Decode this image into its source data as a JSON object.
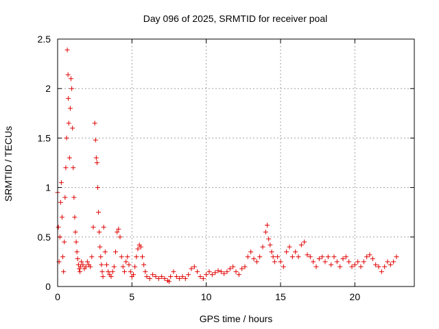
{
  "chart_data": {
    "type": "scatter",
    "title": "Day 096 of 2025, SRMTID for receiver poal",
    "xlabel": "GPS time / hours",
    "ylabel": "SRMTID / TECUs",
    "xlim": [
      0,
      24
    ],
    "ylim": [
      0,
      2.5
    ],
    "xticks": [
      0,
      5,
      10,
      15,
      20
    ],
    "yticks": [
      0,
      0.5,
      1,
      1.5,
      2,
      2.5
    ],
    "xtick_labels": [
      "0",
      "5",
      "10",
      "15",
      "20"
    ],
    "ytick_labels": [
      "0",
      "0.5",
      "1",
      "1.5",
      "2",
      "2.5"
    ],
    "grid": true,
    "marker": "+",
    "series": [
      {
        "name": "SRMTID",
        "color": "#e00000",
        "x": [
          0.0,
          0.05,
          0.1,
          0.15,
          0.2,
          0.25,
          0.3,
          0.35,
          0.4,
          0.45,
          0.5,
          0.55,
          0.6,
          0.65,
          0.7,
          0.72,
          0.75,
          0.8,
          0.85,
          0.9,
          0.95,
          1.0,
          1.05,
          1.1,
          1.15,
          1.2,
          1.25,
          1.3,
          1.35,
          1.4,
          1.45,
          1.5,
          1.55,
          1.6,
          1.7,
          1.8,
          1.9,
          2.0,
          2.1,
          2.2,
          2.3,
          2.4,
          2.5,
          2.55,
          2.6,
          2.65,
          2.7,
          2.75,
          2.8,
          2.85,
          2.9,
          2.95,
          3.0,
          3.05,
          3.1,
          3.2,
          3.3,
          3.4,
          3.5,
          3.6,
          3.7,
          3.8,
          3.9,
          4.0,
          4.1,
          4.2,
          4.3,
          4.4,
          4.5,
          4.6,
          4.7,
          4.8,
          4.9,
          5.0,
          5.1,
          5.2,
          5.3,
          5.4,
          5.5,
          5.6,
          5.7,
          5.8,
          5.9,
          6.0,
          6.2,
          6.4,
          6.6,
          6.8,
          7.0,
          7.2,
          7.4,
          7.5,
          7.6,
          7.8,
          8.0,
          8.2,
          8.4,
          8.6,
          8.8,
          9.0,
          9.2,
          9.4,
          9.6,
          9.8,
          10.0,
          10.2,
          10.4,
          10.6,
          10.8,
          11.0,
          11.2,
          11.4,
          11.6,
          11.8,
          12.0,
          12.2,
          12.4,
          12.6,
          12.8,
          13.0,
          13.2,
          13.4,
          13.6,
          13.8,
          14.0,
          14.1,
          14.2,
          14.3,
          14.4,
          14.5,
          14.6,
          14.8,
          15.0,
          15.2,
          15.4,
          15.6,
          15.8,
          16.0,
          16.2,
          16.4,
          16.6,
          16.8,
          17.0,
          17.2,
          17.4,
          17.6,
          17.8,
          18.0,
          18.2,
          18.4,
          18.6,
          18.8,
          19.0,
          19.2,
          19.4,
          19.6,
          19.8,
          20.0,
          20.2,
          20.4,
          20.6,
          20.8,
          21.0,
          21.2,
          21.4,
          21.6,
          21.8,
          22.0,
          22.2,
          22.4,
          22.6,
          22.8
        ],
        "y": [
          0.95,
          0.6,
          0.25,
          0.5,
          0.85,
          1.05,
          0.7,
          0.3,
          0.15,
          0.45,
          0.9,
          1.2,
          1.5,
          2.39,
          2.14,
          1.9,
          1.65,
          1.3,
          1.8,
          2.1,
          2.0,
          1.6,
          1.2,
          0.9,
          0.7,
          0.55,
          0.45,
          0.35,
          0.28,
          0.22,
          0.18,
          0.15,
          0.2,
          0.25,
          0.22,
          0.18,
          0.2,
          0.25,
          0.22,
          0.2,
          0.3,
          0.6,
          1.65,
          1.48,
          1.3,
          1.25,
          1.0,
          0.75,
          0.55,
          0.4,
          0.3,
          0.22,
          0.15,
          0.1,
          0.6,
          0.35,
          0.22,
          0.15,
          0.12,
          0.1,
          0.15,
          0.2,
          0.35,
          0.55,
          0.58,
          0.5,
          0.3,
          0.2,
          0.15,
          0.25,
          0.3,
          0.22,
          0.15,
          0.1,
          0.12,
          0.2,
          0.3,
          0.38,
          0.42,
          0.4,
          0.3,
          0.22,
          0.15,
          0.1,
          0.08,
          0.12,
          0.1,
          0.08,
          0.1,
          0.08,
          0.06,
          0.05,
          0.1,
          0.15,
          0.1,
          0.08,
          0.1,
          0.08,
          0.12,
          0.18,
          0.2,
          0.15,
          0.1,
          0.08,
          0.12,
          0.15,
          0.12,
          0.14,
          0.16,
          0.15,
          0.13,
          0.15,
          0.18,
          0.2,
          0.15,
          0.12,
          0.18,
          0.2,
          0.3,
          0.35,
          0.28,
          0.25,
          0.3,
          0.4,
          0.55,
          0.62,
          0.48,
          0.42,
          0.35,
          0.3,
          0.25,
          0.3,
          0.25,
          0.2,
          0.35,
          0.4,
          0.3,
          0.35,
          0.3,
          0.42,
          0.45,
          0.32,
          0.3,
          0.25,
          0.2,
          0.28,
          0.3,
          0.25,
          0.3,
          0.22,
          0.3,
          0.25,
          0.2,
          0.28,
          0.3,
          0.25,
          0.2,
          0.22,
          0.25,
          0.2,
          0.25,
          0.3,
          0.32,
          0.28,
          0.22,
          0.2,
          0.15,
          0.2,
          0.25,
          0.22,
          0.25,
          0.3
        ]
      }
    ]
  }
}
